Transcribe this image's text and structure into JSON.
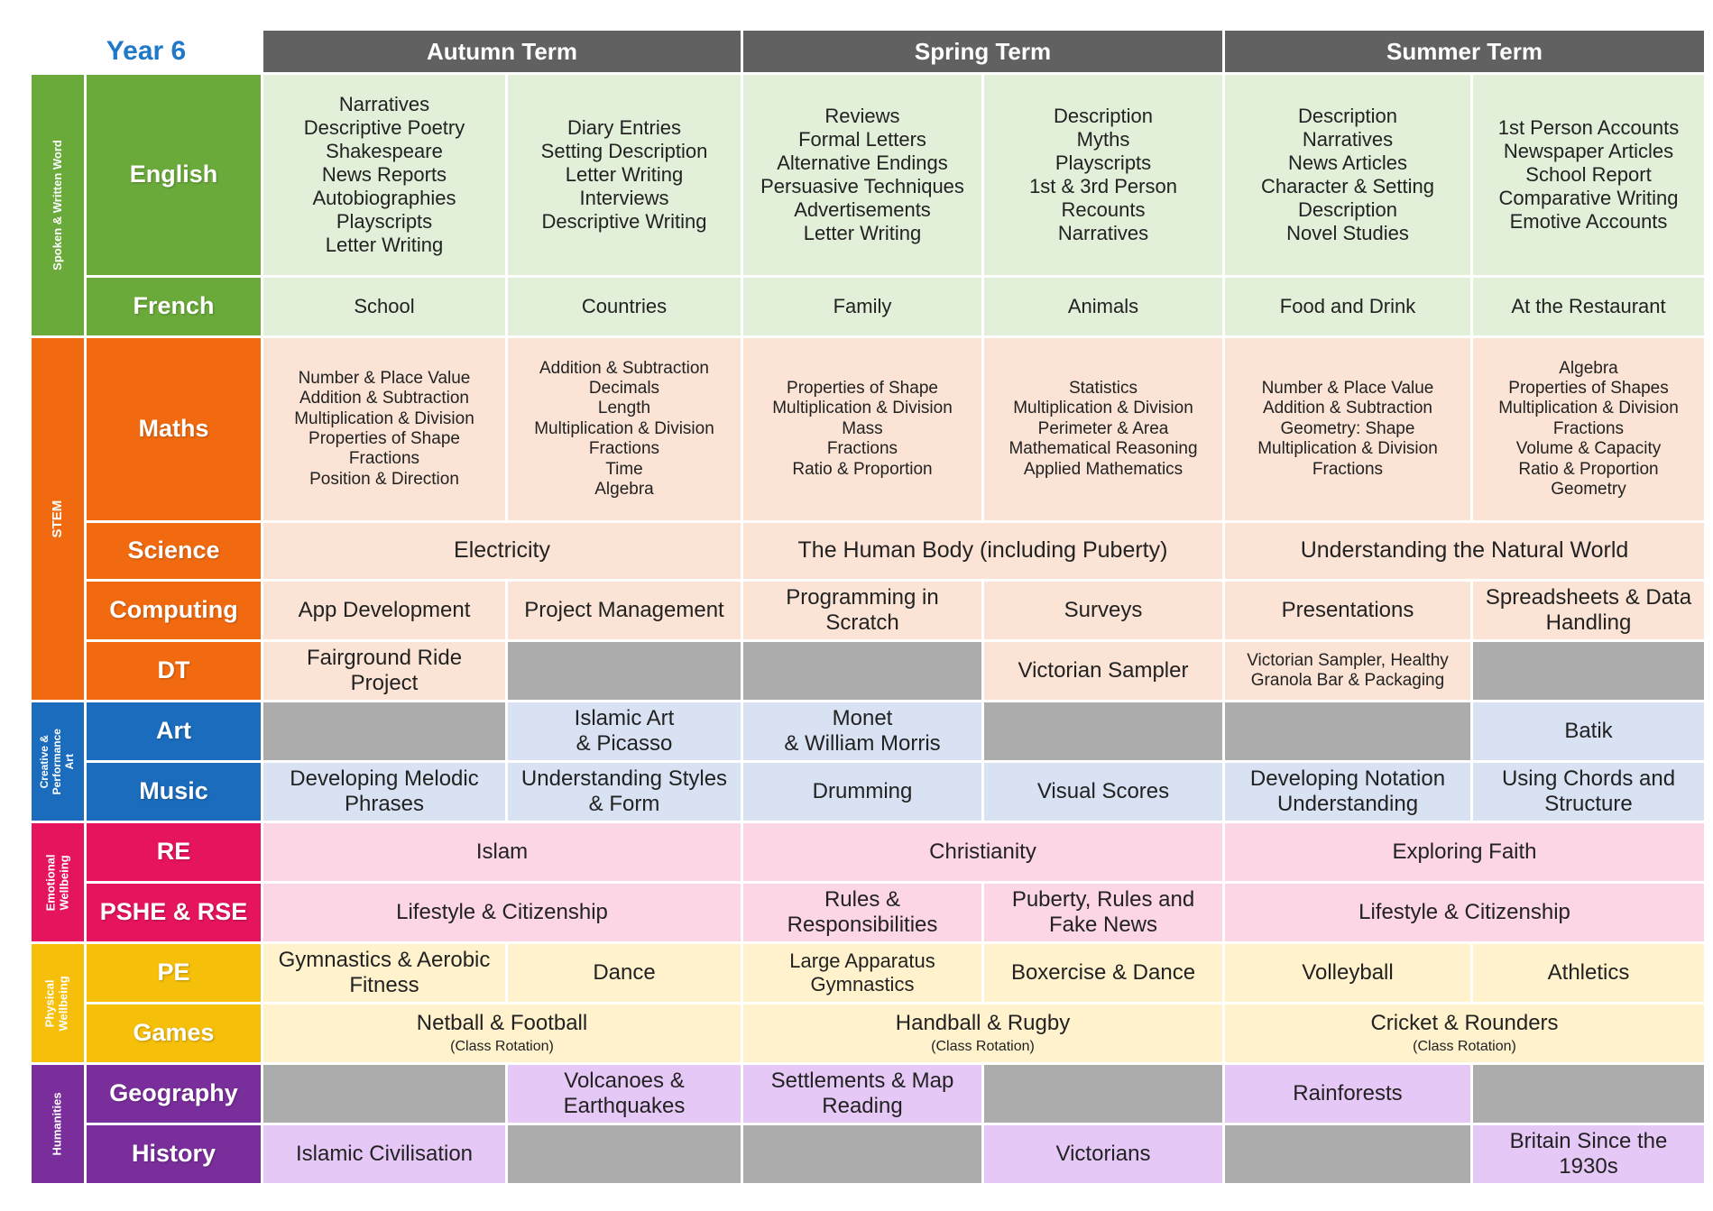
{
  "title": "Year 6",
  "terms": [
    "Autumn Term",
    "Spring Term",
    "Summer Term"
  ],
  "groups": {
    "spoken": "Spoken & Written Word",
    "stem": "STEM",
    "creative": "Creative &\nPerformance\nArt",
    "emotional": "Emotional\nWellbeing",
    "physical": "Physical\nWellbeing",
    "humanities": "Humanities"
  },
  "subjects": {
    "english": "English",
    "french": "French",
    "maths": "Maths",
    "science": "Science",
    "computing": "Computing",
    "dt": "DT",
    "art": "Art",
    "music": "Music",
    "re": "RE",
    "pshe": "PSHE & RSE",
    "pe": "PE",
    "games": "Games",
    "geography": "Geography",
    "history": "History"
  },
  "english": [
    "Narratives\nDescriptive Poetry\nShakespeare\nNews Reports\nAutobiographies\nPlayscripts\nLetter Writing",
    "Diary Entries\nSetting Description\nLetter Writing\nInterviews\nDescriptive Writing",
    "Reviews\nFormal Letters\nAlternative Endings\nPersuasive Techniques\nAdvertisements\nLetter Writing",
    "Description\nMyths\nPlayscripts\n1st & 3rd Person\nRecounts\nNarratives",
    "Description\nNarratives\nNews Articles\nCharacter & Setting\nDescription\nNovel Studies",
    "1st Person Accounts\nNewspaper Articles\nSchool Report\nComparative Writing\nEmotive Accounts"
  ],
  "french": [
    "School",
    "Countries",
    "Family",
    "Animals",
    "Food and Drink",
    "At the Restaurant"
  ],
  "maths": [
    "Number & Place Value\nAddition & Subtraction\nMultiplication & Division\nProperties of Shape\nFractions\nPosition & Direction",
    "Addition & Subtraction\nDecimals\nLength\nMultiplication & Division\nFractions\nTime\nAlgebra",
    "Properties of Shape\nMultiplication & Division\nMass\nFractions\nRatio & Proportion",
    "Statistics\nMultiplication & Division\nPerimeter & Area\nMathematical Reasoning\nApplied Mathematics",
    "Number & Place Value\nAddition & Subtraction\nGeometry: Shape\nMultiplication & Division\nFractions",
    "Algebra\nProperties of Shapes\nMultiplication & Division\nFractions\nVolume & Capacity\nRatio & Proportion\nGeometry"
  ],
  "science": [
    "Electricity",
    "The Human Body (including Puberty)",
    "Understanding the Natural World"
  ],
  "computing": [
    "App Development",
    "Project Management",
    "Programming in\nScratch",
    "Surveys",
    "Presentations",
    "Spreadsheets & Data\nHandling"
  ],
  "dt": [
    "Fairground Ride\nProject",
    "",
    "",
    "Victorian Sampler",
    "Victorian Sampler, Healthy\nGranola Bar & Packaging",
    ""
  ],
  "art": [
    "",
    "Islamic Art\n& Picasso",
    "Monet\n& William Morris",
    "",
    "",
    "Batik"
  ],
  "music": [
    "Developing Melodic\nPhrases",
    "Understanding Styles\n& Form",
    "Drumming",
    "Visual Scores",
    "Developing Notation\nUnderstanding",
    "Using Chords and\nStructure"
  ],
  "re": [
    "Islam",
    "Christianity",
    "Exploring Faith"
  ],
  "pshe": [
    "Lifestyle & Citizenship",
    "Rules &\nResponsibilities",
    "Puberty, Rules and\nFake News",
    "Lifestyle & Citizenship"
  ],
  "pe": [
    "Gymnastics & Aerobic\nFitness",
    "Dance",
    "Large Apparatus\nGymnastics",
    "Boxercise & Dance",
    "Volleyball",
    "Athletics"
  ],
  "games": [
    {
      "main": "Netball & Football",
      "sub": "(Class Rotation)"
    },
    {
      "main": "Handball & Rugby",
      "sub": "(Class Rotation)"
    },
    {
      "main": "Cricket & Rounders",
      "sub": "(Class Rotation)"
    }
  ],
  "geography": [
    "",
    "Volcanoes &\nEarthquakes",
    "Settlements & Map\nReading",
    "",
    "Rainforests",
    ""
  ],
  "history": [
    "Islamic Civilisation",
    "",
    "",
    "Victorians",
    "",
    "Britain Since the\n1930s"
  ],
  "colors": {
    "title": "#1f78c8",
    "term_header": "#616161",
    "blank": "#acacac",
    "spoken": "#6aaa3a",
    "stem": "#f26a0f",
    "creative": "#1b6cbd",
    "emotional": "#e6145e",
    "physical": "#f5bf0a",
    "humanities": "#7a2e9c"
  }
}
